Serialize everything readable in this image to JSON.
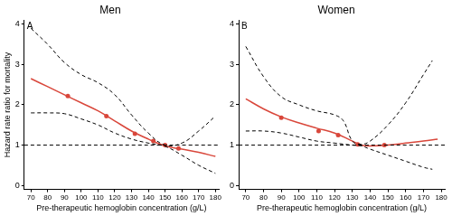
{
  "chart_data": [
    {
      "type": "line",
      "title": "Men",
      "annotations": [
        "A"
      ],
      "xlabel": "Pre-therapeutic hemoglobin concentration (g/L)",
      "ylabel": "Hazard rate ratio for mortality",
      "xlim": [
        66,
        182
      ],
      "xticks": [
        70,
        80,
        90,
        100,
        110,
        120,
        130,
        140,
        150,
        160,
        170,
        180
      ],
      "ylim": [
        -0.1,
        4.1
      ],
      "yticks": [
        0,
        1,
        2,
        3,
        4
      ],
      "grid": false,
      "series": [
        {
          "color": "#000000",
          "line_style": "dashed",
          "marker": "none",
          "x": [
            66,
            182
          ],
          "values": [
            1,
            1
          ]
        },
        {
          "color": "#000000",
          "line_style": "dashed",
          "marker": "none",
          "x": [
            70,
            80,
            90,
            100,
            110,
            120,
            130,
            140,
            150,
            160,
            170,
            180
          ],
          "values": [
            3.9,
            3.5,
            3.05,
            2.75,
            2.55,
            2.25,
            1.75,
            1.3,
            1.0,
            1.05,
            1.35,
            1.72
          ]
        },
        {
          "color": "#000000",
          "line_style": "dashed",
          "marker": "none",
          "x": [
            70,
            80,
            90,
            100,
            110,
            120,
            130,
            140,
            150,
            160,
            170,
            180
          ],
          "values": [
            1.8,
            1.8,
            1.78,
            1.65,
            1.5,
            1.3,
            1.15,
            1.05,
            0.97,
            0.75,
            0.5,
            0.3
          ]
        },
        {
          "color": "#d9473b",
          "line_style": "solid",
          "marker": "none",
          "x": [
            70,
            80,
            90,
            100,
            110,
            120,
            130,
            140,
            150,
            160,
            170,
            180
          ],
          "values": [
            2.65,
            2.45,
            2.25,
            2.05,
            1.85,
            1.6,
            1.35,
            1.15,
            0.98,
            0.9,
            0.82,
            0.72
          ]
        },
        {
          "type": "scatter",
          "color": "#d9473b",
          "line_style": "none",
          "marker": "circle",
          "x": [
            92,
            115,
            132,
            143,
            150,
            158
          ],
          "values": [
            2.22,
            1.72,
            1.28,
            1.1,
            1.0,
            0.92
          ]
        }
      ]
    },
    {
      "type": "line",
      "title": "Women",
      "annotations": [
        "B"
      ],
      "xlabel": "Pre-therapeutic hemoglobin concentration (g/L)",
      "xlim": [
        66,
        182
      ],
      "xticks": [
        70,
        80,
        90,
        100,
        110,
        120,
        130,
        140,
        150,
        160,
        170,
        180
      ],
      "ylim": [
        -0.1,
        4.1
      ],
      "yticks": [
        0,
        1,
        2,
        3,
        4
      ],
      "grid": false,
      "series": [
        {
          "color": "#000000",
          "line_style": "dashed",
          "marker": "none",
          "x": [
            66,
            182
          ],
          "values": [
            1,
            1
          ]
        },
        {
          "color": "#000000",
          "line_style": "dashed",
          "marker": "none",
          "x": [
            70,
            80,
            90,
            100,
            110,
            120,
            125,
            130,
            135,
            140,
            150,
            160,
            170,
            175
          ],
          "values": [
            3.45,
            2.7,
            2.2,
            2.0,
            1.85,
            1.75,
            1.6,
            1.1,
            1.02,
            1.1,
            1.5,
            2.05,
            2.75,
            3.1
          ]
        },
        {
          "color": "#000000",
          "line_style": "dashed",
          "marker": "none",
          "x": [
            70,
            80,
            90,
            100,
            110,
            120,
            130,
            135,
            140,
            150,
            160,
            170,
            175
          ],
          "values": [
            1.35,
            1.35,
            1.3,
            1.2,
            1.1,
            1.05,
            1.0,
            0.98,
            0.9,
            0.75,
            0.6,
            0.45,
            0.4
          ]
        },
        {
          "color": "#d9473b",
          "line_style": "solid",
          "marker": "none",
          "x": [
            70,
            80,
            90,
            100,
            110,
            120,
            130,
            135,
            140,
            150,
            160,
            170,
            178
          ],
          "values": [
            2.15,
            1.9,
            1.7,
            1.55,
            1.42,
            1.3,
            1.1,
            1.0,
            0.98,
            1.0,
            1.05,
            1.1,
            1.15
          ]
        },
        {
          "type": "scatter",
          "color": "#d9473b",
          "line_style": "none",
          "marker": "circle",
          "x": [
            90,
            111,
            122,
            133,
            148
          ],
          "values": [
            1.68,
            1.35,
            1.25,
            1.02,
            1.0
          ]
        }
      ]
    }
  ]
}
